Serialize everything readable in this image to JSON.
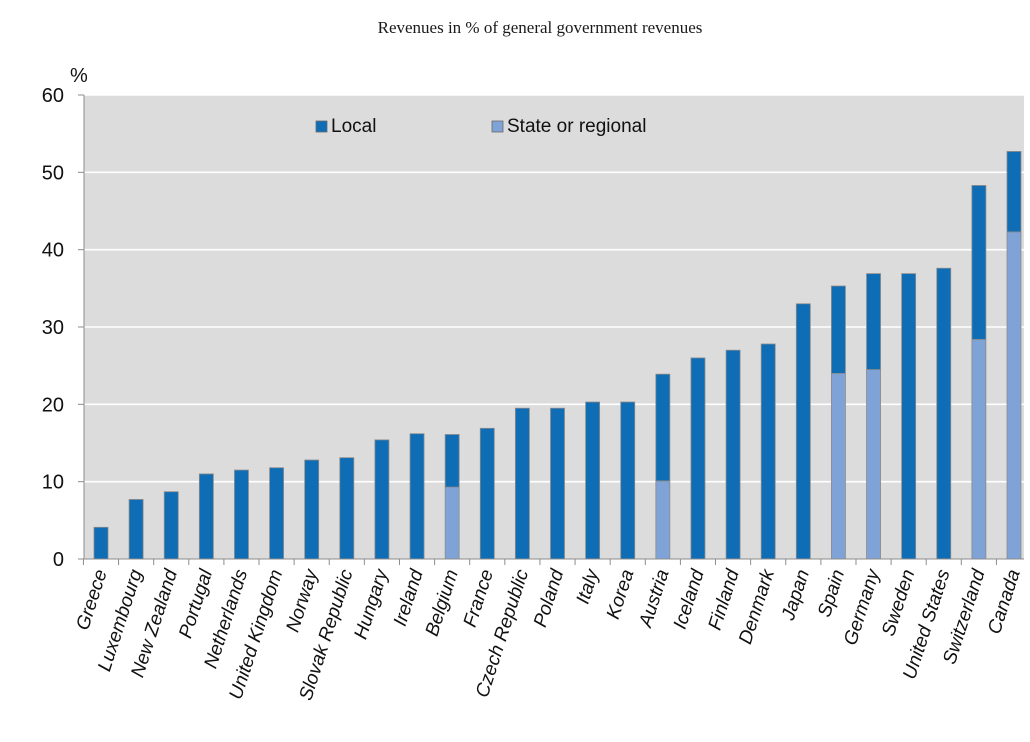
{
  "chart_data": {
    "type": "bar",
    "stacked": true,
    "title": "Revenues in % of general government revenues",
    "ylabel": "%",
    "ylim": [
      0,
      60
    ],
    "yticks": [
      0,
      10,
      20,
      30,
      40,
      50,
      60
    ],
    "grid": true,
    "legend_position": "top",
    "categories": [
      "Greece",
      "Luxembourg",
      "New Zealand",
      "Portugal",
      "Netherlands",
      "United Kingdom",
      "Norway",
      "Slovak Republic",
      "Hungary",
      "Ireland",
      "Belgium",
      "France",
      "Czech Republic",
      "Poland",
      "Italy",
      "Korea",
      "Austria",
      "Iceland",
      "Finland",
      "Denmark",
      "Japan",
      "Spain",
      "Germany",
      "Sweden",
      "United States",
      "Switzerland",
      "Canada"
    ],
    "series": [
      {
        "name": "State or regional",
        "color": "#7fa3d6",
        "values": [
          0,
          0,
          0,
          0,
          0,
          0,
          0,
          0,
          0,
          0,
          9.3,
          0,
          0,
          0,
          0,
          0,
          10.1,
          0,
          0,
          0,
          0,
          24.0,
          24.5,
          0,
          0,
          28.4,
          42.3
        ]
      },
      {
        "name": "Local",
        "color": "#0f6db5",
        "values": [
          4.1,
          7.7,
          8.7,
          11.0,
          11.5,
          11.8,
          12.8,
          13.1,
          15.4,
          16.2,
          6.8,
          16.9,
          19.5,
          19.5,
          20.3,
          20.3,
          13.8,
          26.0,
          27.0,
          27.8,
          33.0,
          11.3,
          12.4,
          36.9,
          37.6,
          19.9,
          10.4
        ]
      }
    ]
  }
}
